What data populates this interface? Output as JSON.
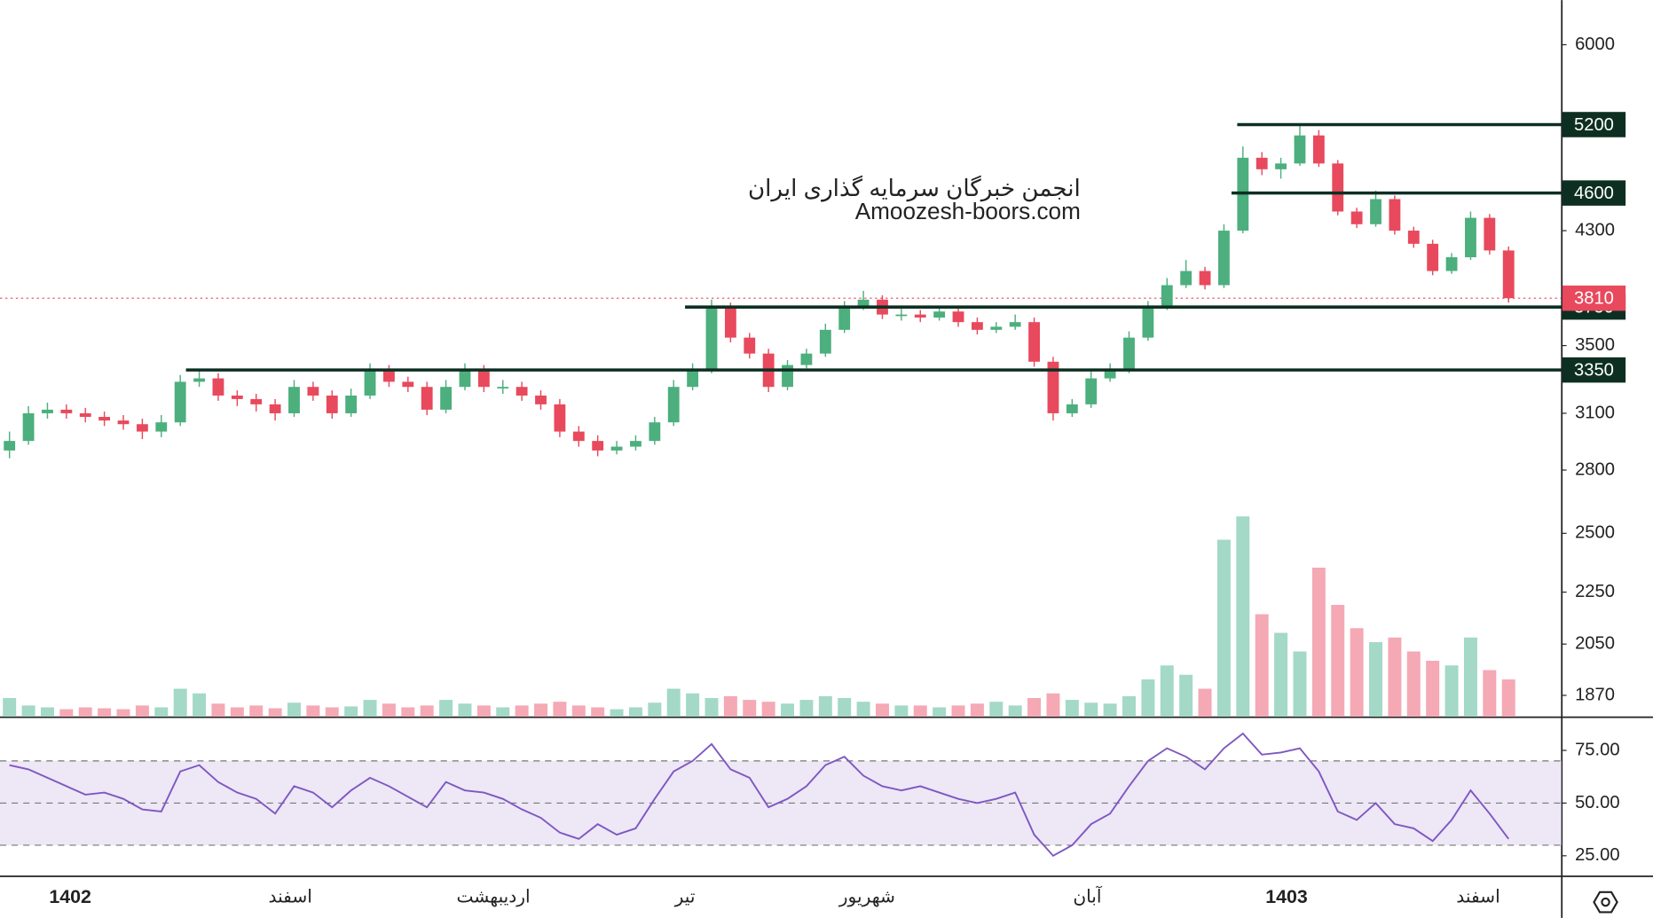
{
  "chart_data": {
    "type": "candlestick",
    "watermark": [
      "انجمن خبرگان سرمایه گذاری ایران",
      "Amoozesh-boors.com"
    ],
    "log_scale": true,
    "ylim": [
      1800,
      6500
    ],
    "yticks": [
      6000,
      4300,
      3500,
      3100,
      2800,
      2500,
      2250,
      2050,
      1870
    ],
    "up_color": "#4caf7d",
    "down_color": "#e8495c",
    "volume_up_color": "#a3d9c6",
    "volume_down_color": "#f4a9b5",
    "candles": [
      [
        2900,
        3000,
        2860,
        2950
      ],
      [
        2950,
        3140,
        2930,
        3100
      ],
      [
        3100,
        3160,
        3070,
        3120
      ],
      [
        3120,
        3150,
        3070,
        3100
      ],
      [
        3100,
        3130,
        3050,
        3080
      ],
      [
        3080,
        3110,
        3030,
        3060
      ],
      [
        3060,
        3090,
        3010,
        3040
      ],
      [
        3040,
        3070,
        2960,
        3000
      ],
      [
        3000,
        3090,
        2970,
        3050
      ],
      [
        3050,
        3320,
        3030,
        3280
      ],
      [
        3280,
        3350,
        3250,
        3300
      ],
      [
        3300,
        3330,
        3170,
        3200
      ],
      [
        3200,
        3230,
        3140,
        3180
      ],
      [
        3180,
        3210,
        3110,
        3150
      ],
      [
        3150,
        3180,
        3060,
        3100
      ],
      [
        3100,
        3290,
        3080,
        3250
      ],
      [
        3250,
        3280,
        3170,
        3200
      ],
      [
        3200,
        3230,
        3070,
        3100
      ],
      [
        3100,
        3240,
        3080,
        3200
      ],
      [
        3200,
        3390,
        3180,
        3350
      ],
      [
        3350,
        3380,
        3250,
        3280
      ],
      [
        3280,
        3310,
        3220,
        3250
      ],
      [
        3250,
        3280,
        3090,
        3120
      ],
      [
        3120,
        3290,
        3100,
        3250
      ],
      [
        3250,
        3390,
        3230,
        3350
      ],
      [
        3350,
        3380,
        3220,
        3250
      ],
      [
        3250,
        3290,
        3210,
        3250
      ],
      [
        3250,
        3280,
        3170,
        3200
      ],
      [
        3200,
        3230,
        3120,
        3150
      ],
      [
        3150,
        3180,
        2970,
        3000
      ],
      [
        3000,
        3030,
        2920,
        2950
      ],
      [
        2950,
        2980,
        2870,
        2900
      ],
      [
        2900,
        2950,
        2880,
        2920
      ],
      [
        2920,
        2980,
        2900,
        2950
      ],
      [
        2950,
        3080,
        2930,
        3050
      ],
      [
        3050,
        3290,
        3030,
        3250
      ],
      [
        3250,
        3390,
        3230,
        3350
      ],
      [
        3350,
        3800,
        3330,
        3750
      ],
      [
        3750,
        3780,
        3520,
        3550
      ],
      [
        3550,
        3580,
        3420,
        3450
      ],
      [
        3450,
        3480,
        3220,
        3250
      ],
      [
        3250,
        3410,
        3230,
        3380
      ],
      [
        3380,
        3480,
        3360,
        3450
      ],
      [
        3450,
        3640,
        3430,
        3600
      ],
      [
        3600,
        3790,
        3580,
        3750
      ],
      [
        3750,
        3860,
        3730,
        3800
      ],
      [
        3800,
        3830,
        3670,
        3700
      ],
      [
        3700,
        3760,
        3660,
        3700
      ],
      [
        3700,
        3730,
        3650,
        3680
      ],
      [
        3680,
        3760,
        3660,
        3720
      ],
      [
        3720,
        3750,
        3620,
        3650
      ],
      [
        3650,
        3680,
        3570,
        3600
      ],
      [
        3600,
        3650,
        3580,
        3620
      ],
      [
        3620,
        3700,
        3600,
        3650
      ],
      [
        3650,
        3680,
        3370,
        3400
      ],
      [
        3400,
        3430,
        3060,
        3100
      ],
      [
        3100,
        3180,
        3080,
        3150
      ],
      [
        3150,
        3340,
        3130,
        3300
      ],
      [
        3300,
        3390,
        3280,
        3350
      ],
      [
        3350,
        3590,
        3330,
        3550
      ],
      [
        3550,
        3790,
        3530,
        3750
      ],
      [
        3750,
        3950,
        3730,
        3900
      ],
      [
        3900,
        4080,
        3880,
        4000
      ],
      [
        4000,
        4030,
        3870,
        3900
      ],
      [
        3900,
        4350,
        3880,
        4300
      ],
      [
        4300,
        5000,
        4280,
        4900
      ],
      [
        4900,
        4950,
        4750,
        4800
      ],
      [
        4800,
        4900,
        4720,
        4850
      ],
      [
        4850,
        5200,
        4830,
        5100
      ],
      [
        5100,
        5150,
        4820,
        4850
      ],
      [
        4850,
        4880,
        4420,
        4450
      ],
      [
        4450,
        4480,
        4320,
        4350
      ],
      [
        4350,
        4620,
        4330,
        4550
      ],
      [
        4550,
        4580,
        4270,
        4300
      ],
      [
        4300,
        4330,
        4170,
        4200
      ],
      [
        4200,
        4230,
        3970,
        4000
      ],
      [
        4000,
        4130,
        3980,
        4100
      ],
      [
        4100,
        4450,
        4080,
        4400
      ],
      [
        4400,
        4430,
        4120,
        4150
      ],
      [
        4150,
        4180,
        3780,
        3810
      ]
    ],
    "volume": [
      20,
      12,
      10,
      8,
      10,
      9,
      8,
      12,
      10,
      30,
      25,
      14,
      10,
      12,
      9,
      15,
      12,
      10,
      11,
      18,
      14,
      10,
      12,
      18,
      14,
      12,
      10,
      12,
      14,
      16,
      12,
      10,
      8,
      10,
      15,
      30,
      25,
      20,
      22,
      18,
      16,
      14,
      18,
      22,
      20,
      16,
      14,
      12,
      12,
      10,
      12,
      14,
      16,
      12,
      20,
      25,
      18,
      15,
      14,
      22,
      40,
      55,
      45,
      30,
      190,
      215,
      110,
      90,
      70,
      160,
      120,
      95,
      80,
      85,
      70,
      60,
      55,
      85,
      50,
      40
    ],
    "levels": [
      {
        "value": 5200,
        "from": 64.7
      },
      {
        "value": 4600,
        "from": 64.4
      },
      {
        "value": 3750,
        "from": 35.6
      },
      {
        "value": 3350,
        "from": 9.3
      }
    ],
    "last_price": 3810,
    "time_labels": [
      {
        "label": "1402",
        "index": 3.2,
        "bold": true
      },
      {
        "label": "اسفند",
        "index": 14.8,
        "bold": false
      },
      {
        "label": "اردیبهشت",
        "index": 25.5,
        "bold": false
      },
      {
        "label": "تیر",
        "index": 35.6,
        "bold": false
      },
      {
        "label": "شهریور",
        "index": 45.2,
        "bold": false
      },
      {
        "label": "آبان",
        "index": 56.8,
        "bold": false
      },
      {
        "label": "1403",
        "index": 67.3,
        "bold": true
      },
      {
        "label": "اسفند",
        "index": 77.4,
        "bold": false
      }
    ],
    "rsi": {
      "color": "#7e57c2",
      "band_color": "#ede7f6",
      "ylim": [
        15.5,
        90.5
      ],
      "yticks": [
        {
          "value": 75,
          "label": "75.00"
        },
        {
          "value": 50,
          "label": "50.00"
        },
        {
          "value": 25,
          "label": "25.00"
        }
      ],
      "band": [
        30,
        70
      ],
      "levels": [
        70,
        50,
        30
      ],
      "values": [
        68,
        66,
        62,
        58,
        54,
        55,
        52,
        47,
        46,
        65,
        68,
        60,
        55,
        52,
        45,
        58,
        55,
        48,
        56,
        62,
        58,
        53,
        48,
        60,
        56,
        55,
        52,
        47,
        43,
        36,
        33,
        40,
        35,
        38,
        52,
        65,
        70,
        78,
        66,
        62,
        48,
        52,
        58,
        68,
        72,
        63,
        58,
        56,
        58,
        55,
        52,
        50,
        52,
        55,
        35,
        25,
        30,
        40,
        45,
        58,
        70,
        76,
        72,
        66,
        76,
        83,
        73,
        74,
        76,
        65,
        46,
        42,
        50,
        40,
        38,
        32,
        42,
        56,
        45,
        33
      ]
    }
  }
}
